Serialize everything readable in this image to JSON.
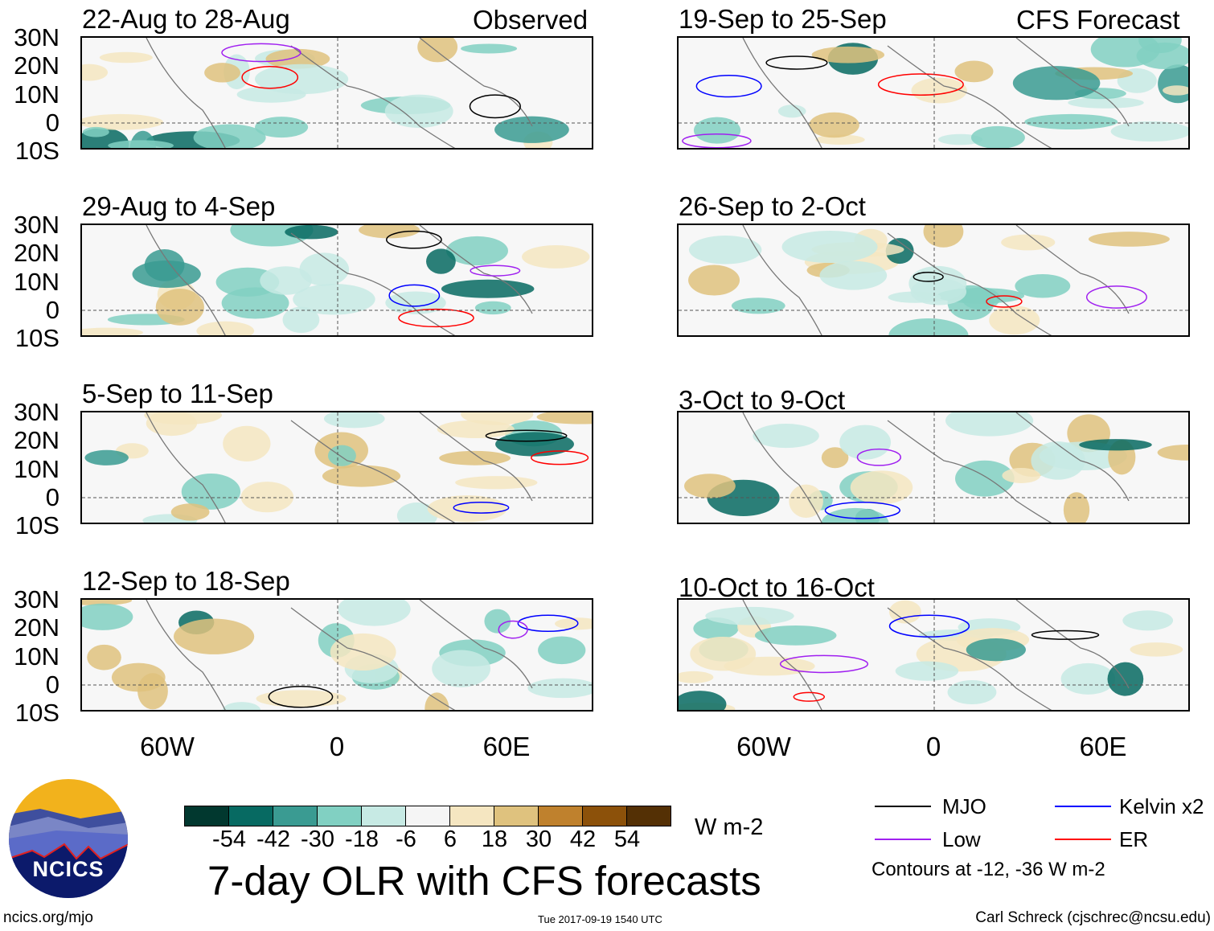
{
  "observed_label": "Observed",
  "forecast_label": "CFS Forecast",
  "panels_left": [
    "22-Aug to 28-Aug",
    "29-Aug to 4-Sep",
    "5-Sep to 11-Sep",
    "12-Sep to 18-Sep"
  ],
  "panels_right": [
    "19-Sep to 25-Sep",
    "26-Sep to 2-Oct",
    "3-Oct to 9-Oct",
    "10-Oct to 16-Oct"
  ],
  "lat_labels": [
    "30N",
    "20N",
    "10N",
    "0",
    "10S"
  ],
  "lon_labels": [
    "60W",
    "0",
    "60E"
  ],
  "colorbar": {
    "labels": [
      "-54",
      "-42",
      "-30",
      "-18",
      "-6",
      "6",
      "18",
      "30",
      "42",
      "54"
    ],
    "colors": [
      "#01382f",
      "#076a62",
      "#3a9b92",
      "#81d0c2",
      "#c7eae4",
      "#f5f5f5",
      "#f5e6c1",
      "#dfc27e",
      "#bf812d",
      "#8c510a",
      "#543005"
    ],
    "units": "W m-2"
  },
  "title": "7-day OLR with CFS forecasts",
  "legend": {
    "items": [
      {
        "label": "MJO",
        "color": "#000000"
      },
      {
        "label": "Kelvin x2",
        "color": "#0000ff"
      },
      {
        "label": "Low",
        "color": "#a020f0"
      },
      {
        "label": "ER",
        "color": "#ff0000"
      }
    ],
    "note": "Contours at -12, -36 W m-2"
  },
  "logo_text": "NCICS",
  "url": "ncics.org/mjo",
  "timestamp": "Tue 2017-09-19 1540 UTC",
  "credit": "Carl Schreck (cjschrec@ncsu.edu)"
}
